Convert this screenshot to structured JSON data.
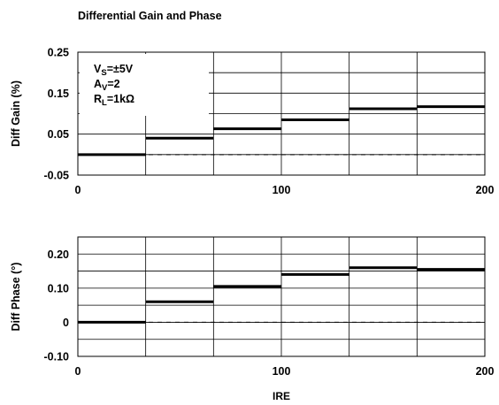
{
  "figure": {
    "title": "Differential Gain and Phase",
    "xlabel": "IRE"
  },
  "chart_data": [
    {
      "type": "line",
      "step": true,
      "title": "Differential Gain and Phase",
      "xlabel": "",
      "ylabel": "Diff Gain (%)",
      "xlim": [
        0,
        200
      ],
      "ylim": [
        -0.05,
        0.25
      ],
      "x_ticks": [
        0,
        100,
        200
      ],
      "x_tick_labels": [
        "0",
        "100",
        "200"
      ],
      "y_ticks": [
        -0.05,
        0.05,
        0.15,
        0.25
      ],
      "y_tick_labels": [
        "-0.05",
        "0.05",
        "0.15",
        "0.25"
      ],
      "grid": true,
      "grid_x_divisions": 6,
      "grid_y_divisions": 6,
      "reference_line": {
        "y": 0,
        "style": "dashed"
      },
      "steps": [
        {
          "x0": 0,
          "x1": 33.3,
          "y": 0.0
        },
        {
          "x0": 33.3,
          "x1": 66.7,
          "y": 0.04
        },
        {
          "x0": 66.7,
          "x1": 100,
          "y": 0.063
        },
        {
          "x0": 100,
          "x1": 133.3,
          "y": 0.085
        },
        {
          "x0": 133.3,
          "x1": 166.7,
          "y": 0.112
        },
        {
          "x0": 166.7,
          "x1": 200,
          "y": 0.117
        }
      ],
      "annotation": [
        {
          "main": "V",
          "sub": "S",
          "rest": "=±5V"
        },
        {
          "main": "A",
          "sub": "V",
          "rest": "=2"
        },
        {
          "main": "R",
          "sub": "L",
          "rest": "=1kΩ"
        }
      ]
    },
    {
      "type": "line",
      "step": true,
      "xlabel": "IRE",
      "ylabel": "Diff Phase (°)",
      "xlim": [
        0,
        200
      ],
      "ylim": [
        -0.1,
        0.25
      ],
      "x_ticks": [
        0,
        100,
        200
      ],
      "x_tick_labels": [
        "0",
        "100",
        "200"
      ],
      "y_ticks": [
        -0.1,
        0,
        0.1,
        0.2
      ],
      "y_tick_labels": [
        "-0.10",
        "0",
        "0.10",
        "0.20"
      ],
      "grid": true,
      "grid_x_divisions": 6,
      "grid_y_divisions": 7,
      "reference_line": {
        "y": 0,
        "style": "dashed"
      },
      "steps": [
        {
          "x0": 0,
          "x1": 33.3,
          "y": 0.0
        },
        {
          "x0": 33.3,
          "x1": 66.7,
          "y": 0.06
        },
        {
          "x0": 66.7,
          "x1": 100,
          "y": 0.105
        },
        {
          "x0": 100,
          "x1": 133.3,
          "y": 0.14
        },
        {
          "x0": 133.3,
          "x1": 166.7,
          "y": 0.16
        },
        {
          "x0": 166.7,
          "x1": 200,
          "y": 0.155
        }
      ]
    }
  ]
}
